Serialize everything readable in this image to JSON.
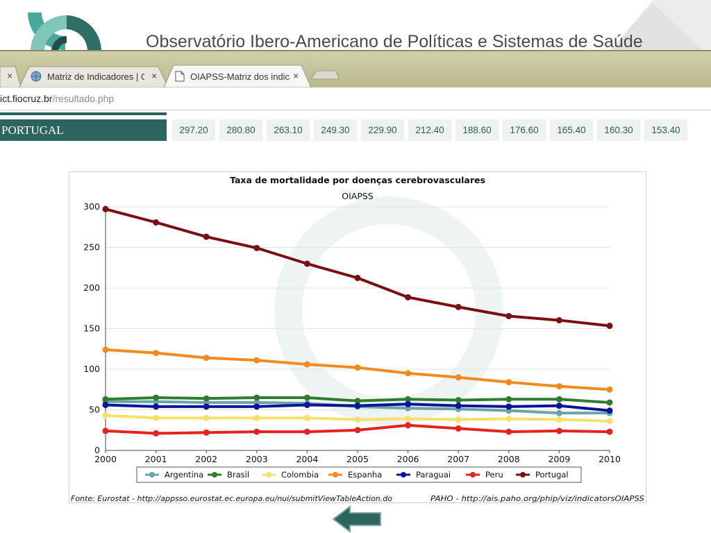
{
  "header": {
    "title": "Observatório Ibero-Americano de Políticas e Sistemas de Saúde"
  },
  "browser": {
    "tabs": [
      {
        "label": "",
        "close": "×",
        "active": false
      },
      {
        "label": "Matriz de Indicadores | O",
        "close": "×",
        "active": false
      },
      {
        "label": "OIAPSS-Matriz dos indica",
        "close": "×",
        "active": true
      }
    ],
    "url_domain": "ict.fiocruz.br",
    "url_path": "/resultado.php"
  },
  "table_row": {
    "country": "PORTUGAL",
    "values": [
      "297.20",
      "280.80",
      "263.10",
      "249.30",
      "229.90",
      "212.40",
      "188.60",
      "176.60",
      "165.40",
      "160.30",
      "153.40"
    ]
  },
  "chart_data": {
    "type": "line",
    "title": "Taxa de mortalidade por doenças cerebrovasculares",
    "subtitle": "OIAPSS",
    "x": [
      2000,
      2001,
      2002,
      2003,
      2004,
      2005,
      2006,
      2007,
      2008,
      2009,
      2010
    ],
    "ylim": [
      0,
      300
    ],
    "yticks": [
      0,
      50,
      100,
      150,
      200,
      250,
      300
    ],
    "grid": true,
    "legend_position": "bottom",
    "series": [
      {
        "name": "Argentina",
        "color": "#6aa3a8",
        "values": [
          60,
          60,
          59,
          59,
          58,
          54,
          52,
          51,
          49,
          46,
          46
        ]
      },
      {
        "name": "Brasil",
        "color": "#2e7d2e",
        "values": [
          63,
          65,
          64,
          65,
          65,
          61,
          63,
          62,
          63,
          63,
          59
        ]
      },
      {
        "name": "Colombia",
        "color": "#f5e06a",
        "values": [
          43,
          40,
          40,
          40,
          40,
          38,
          39,
          38,
          39,
          38,
          36
        ]
      },
      {
        "name": "Espanha",
        "color": "#f28a1c",
        "values": [
          124,
          120,
          114,
          111,
          106,
          102,
          95,
          90,
          84,
          79,
          75
        ]
      },
      {
        "name": "Paraguai",
        "color": "#0a149a",
        "values": [
          56,
          54,
          54,
          54,
          56,
          55,
          57,
          55,
          54,
          55,
          49
        ]
      },
      {
        "name": "Peru",
        "color": "#e52222",
        "values": [
          24,
          21,
          22,
          23,
          23,
          25,
          31,
          27,
          23,
          24,
          23
        ]
      },
      {
        "name": "Portugal",
        "color": "#7a0e10",
        "values": [
          297.2,
          280.8,
          263.1,
          249.3,
          229.9,
          212.4,
          188.6,
          176.6,
          165.4,
          160.3,
          153.4
        ]
      }
    ],
    "sources": {
      "left": "Fonte: Eurostat - http://appsso.eurostat.ec.europa.eu/nui/submitViewTableAction.do",
      "right": "PAHO - http://ais.paho.org/phip/viz/indicatorsOIAPSS"
    }
  }
}
